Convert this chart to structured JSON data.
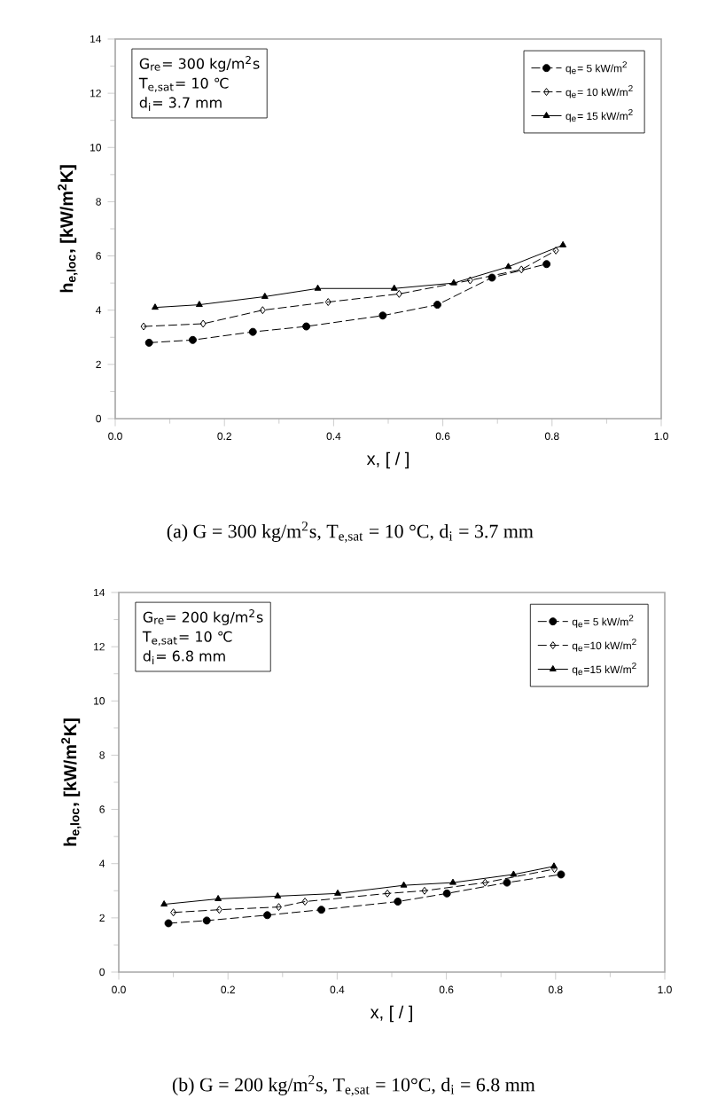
{
  "chart_data": [
    {
      "type": "line",
      "xlabel": "x, [ / ]",
      "ylabel": "h$_{e,loc}$, [kW/m$^{2}$K]",
      "annotations": [
        "G$_{re}$= 300 kg/m$^{2}$s",
        "T$_{e,sat}$= 10 ℃",
        "d$_{i}$= 3.7 mm",
        "(a) G = 300 kg/m$^{2}$s, T$_{e,sat}$ = 10 °C, d$_{i}$ = 3.7 mm"
      ],
      "xlim": [
        0,
        1
      ],
      "ylim": [
        0,
        14
      ],
      "xticks": [
        {
          "value": 0,
          "label": "0.0"
        },
        {
          "value": 0.2,
          "label": "0.2"
        },
        {
          "value": 0.4,
          "label": "0.4"
        },
        {
          "value": 0.6,
          "label": "0.6"
        },
        {
          "value": 0.8,
          "label": "0.8"
        },
        {
          "value": 1,
          "label": "1.0"
        }
      ],
      "yticks": [
        0,
        2,
        4,
        6,
        8,
        10,
        12,
        14
      ],
      "grid": false,
      "legend": "top right",
      "series": [
        {
          "name": "q$_{e}$= 5 kW/m$^{2}$",
          "color": "#000000",
          "marker": "circle",
          "line_style": "dashed",
          "x": [
            0.062,
            0.142,
            0.252,
            0.35,
            0.49,
            0.59,
            0.69,
            0.79
          ],
          "values": [
            2.8,
            2.9,
            3.2,
            3.4,
            3.8,
            4.2,
            5.2,
            5.7
          ]
        },
        {
          "name": "q$_{e}$= 10 kW/m$^{2}$",
          "color": "#000000",
          "marker": "diamond",
          "line_style": "dashed",
          "x": [
            0.052,
            0.161,
            0.27,
            0.39,
            0.52,
            0.65,
            0.744,
            0.807
          ],
          "values": [
            3.4,
            3.5,
            4.0,
            4.3,
            4.6,
            5.1,
            5.5,
            6.2
          ]
        },
        {
          "name": "q$_{e}$= 15 kW/m$^{2}$",
          "color": "#000000",
          "marker": "triangle",
          "line_style": "solid",
          "x": [
            0.073,
            0.154,
            0.274,
            0.371,
            0.511,
            0.62,
            0.72,
            0.82
          ],
          "values": [
            4.1,
            4.2,
            4.5,
            4.8,
            4.8,
            5.0,
            5.6,
            6.4
          ]
        }
      ]
    },
    {
      "type": "line",
      "xlabel": "x, [ / ]",
      "ylabel": "h$_{e,loc}$, [kW/m$^{2}$K]",
      "annotations": [
        "G$_{re}$= 200 kg/m$^{2}$s",
        "T$_{e,sat}$= 10 ℃",
        "d$_{i}$= 6.8 mm",
        "(b) G = 200 kg/m$^{2}$s, T$_{e,sat}$ = 10°C, d$_{i}$ = 6.8 mm"
      ],
      "xlim": [
        0,
        1
      ],
      "ylim": [
        0,
        14
      ],
      "xticks": [
        {
          "value": 0,
          "label": "0.0"
        },
        {
          "value": 0.2,
          "label": "0.2"
        },
        {
          "value": 0.4,
          "label": "0.4"
        },
        {
          "value": 0.6,
          "label": "0.6"
        },
        {
          "value": 0.8,
          "label": "0.8"
        },
        {
          "value": 1,
          "label": "1.0"
        }
      ],
      "yticks": [
        0,
        2,
        4,
        6,
        8,
        10,
        12,
        14
      ],
      "grid": false,
      "legend": "top right",
      "series": [
        {
          "name": "q$_{e}$= 5 kW/m$^{2}$",
          "color": "#000000",
          "marker": "circle",
          "line_style": "dashed",
          "x": [
            0.091,
            0.161,
            0.272,
            0.371,
            0.511,
            0.601,
            0.711,
            0.81
          ],
          "values": [
            1.8,
            1.9,
            2.1,
            2.3,
            2.6,
            2.9,
            3.3,
            3.6
          ]
        },
        {
          "name": "q$_{e}$=10 kW/m$^{2}$",
          "color": "#000000",
          "marker": "diamond",
          "line_style": "dashed",
          "x": [
            0.1,
            0.184,
            0.293,
            0.341,
            0.492,
            0.56,
            0.671,
            0.798
          ],
          "values": [
            2.2,
            2.3,
            2.4,
            2.6,
            2.9,
            3.0,
            3.3,
            3.8
          ]
        },
        {
          "name": "q$_{e}$=15 kW/m$^{2}$",
          "color": "#000000",
          "marker": "triangle",
          "line_style": "solid",
          "x": [
            0.083,
            0.182,
            0.291,
            0.401,
            0.522,
            0.612,
            0.723,
            0.797
          ],
          "values": [
            2.5,
            2.7,
            2.8,
            2.9,
            3.2,
            3.3,
            3.6,
            3.9
          ]
        }
      ]
    }
  ]
}
